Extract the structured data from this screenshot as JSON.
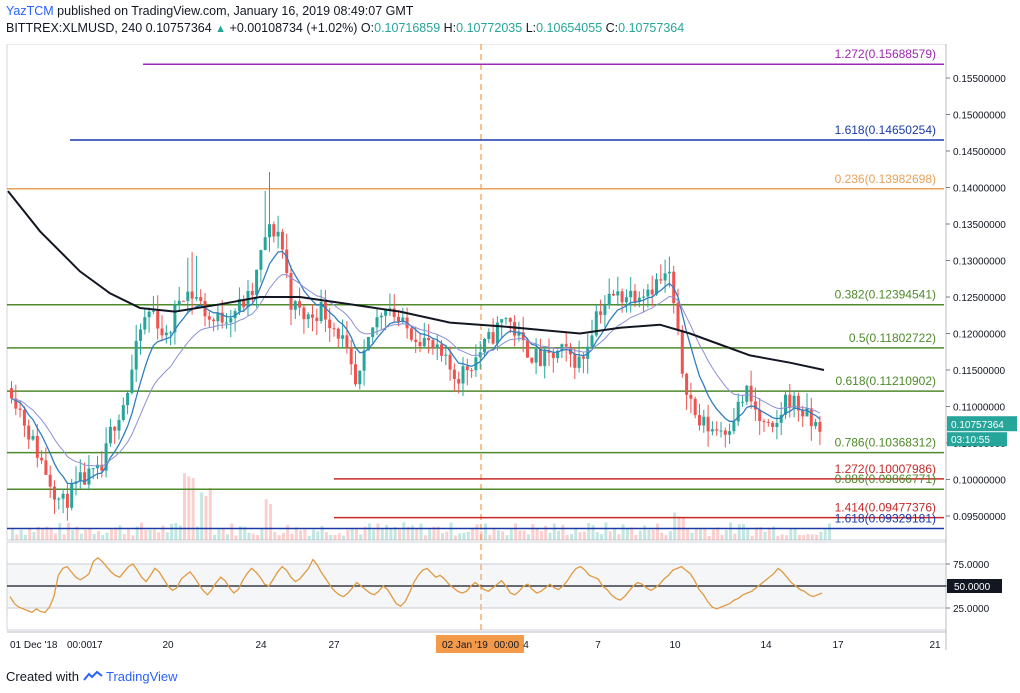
{
  "header": {
    "user": "YazTCM",
    "published": "published on TradingView.com, January 16, 2019 08:49:07 GMT",
    "symbol": "BITTREX:XLMUSD, 240",
    "last": "0.10757364",
    "change": "+0.00108734 (+1.02%)",
    "o_label": "O:",
    "o_val": "0.10716859",
    "h_label": "H:",
    "h_val": "0.10772035",
    "l_label": "L:",
    "l_val": "0.10654055",
    "c_label": "C:",
    "c_val": "0.10757364"
  },
  "footer": {
    "created_with": "Created with",
    "brand": "TradingView"
  },
  "colors": {
    "up": "#26a69a",
    "down": "#ef5350",
    "sma": "#131722",
    "ema": "#2f7fc1",
    "ema2": "#8c8fd6",
    "rsi": "#e09a43",
    "fib_green": "#4f8a2a",
    "fib_red": "#c62828",
    "fib_blue": "#1a3aa8",
    "fib_purple": "#9c27b0",
    "fib_orange": "#e8a25a"
  },
  "chart_data": {
    "type": "candlestick",
    "symbol": "BITTREX:XLMUSD",
    "interval": "240",
    "ylim": [
      0.0925,
      0.159
    ],
    "y_ticks": [
      "0.15500000",
      "0.15000000",
      "0.14500000",
      "0.14000000",
      "0.13500000",
      "0.13000000",
      "0.12500000",
      "0.12000000",
      "0.11500000",
      "0.11000000",
      "0.10500000",
      "0.10000000",
      "0.09500000"
    ],
    "x_ticks": [
      "01 Dec '18",
      "00:00",
      "17",
      "20",
      "24",
      "27",
      "02 Jan '19",
      "00:00",
      "4",
      "7",
      "10",
      "14",
      "17",
      "21"
    ],
    "price_label": "0.10757364",
    "countdown_label": "03:10:55",
    "fib_levels": [
      {
        "label": "1.272(0.15688579)",
        "value": 0.15688579,
        "color": "#9c27b0"
      },
      {
        "label": "1.618(0.14650254)",
        "value": 0.14650254,
        "color": "#1a3aa8"
      },
      {
        "label": "0.236(0.13982698)",
        "value": 0.13982698,
        "color": "#e8a25a"
      },
      {
        "label": "0.382(0.12394541)",
        "value": 0.12394541,
        "color": "#4f8a2a"
      },
      {
        "label": "0.5(0.11802722)",
        "value": 0.11802722,
        "color": "#4f8a2a"
      },
      {
        "label": "0.618(0.11210902)",
        "value": 0.11210902,
        "color": "#4f8a2a"
      },
      {
        "label": "0.786(0.10368312)",
        "value": 0.10368312,
        "color": "#4f8a2a"
      },
      {
        "label": "1.272(0.10007986)",
        "value": 0.10007986,
        "color": "#c62828"
      },
      {
        "label": "0.886(0.09866771)",
        "value": 0.09866771,
        "color": "#4f8a2a"
      },
      {
        "label": "1.414(0.09477376)",
        "value": 0.09477376,
        "color": "#c62828"
      },
      {
        "label": "1.618(0.09329181)",
        "value": 0.09329181,
        "color": "#1a3aa8"
      }
    ],
    "rsi": {
      "ylim": [
        0,
        100
      ],
      "y_ticks": [
        "75.0000",
        "50.0000",
        "25.0000"
      ],
      "level_label": "50.0000",
      "values": [
        38,
        30,
        26,
        24,
        22,
        20,
        24,
        21,
        20,
        26,
        38,
        62,
        70,
        72,
        66,
        60,
        57,
        60,
        64,
        78,
        82,
        78,
        72,
        66,
        62,
        60,
        66,
        72,
        75,
        68,
        60,
        55,
        62,
        70,
        66,
        58,
        50,
        45,
        48,
        58,
        62,
        66,
        60,
        52,
        45,
        40,
        46,
        54,
        60,
        56,
        48,
        42,
        46,
        56,
        64,
        70,
        66,
        60,
        52,
        50,
        58,
        66,
        72,
        68,
        60,
        55,
        58,
        64,
        70,
        80,
        74,
        65,
        58,
        50,
        44,
        40,
        38,
        42,
        48,
        54,
        50,
        46,
        42,
        40,
        44,
        50,
        46,
        38,
        30,
        27,
        32,
        42,
        54,
        62,
        68,
        70,
        65,
        60,
        62,
        58,
        52,
        48,
        44,
        42,
        44,
        50,
        54,
        50,
        46,
        44,
        48,
        52,
        56,
        50,
        42,
        40,
        44,
        50,
        52,
        46,
        42,
        44,
        48,
        52,
        48,
        46,
        50,
        56,
        64,
        70,
        72,
        68,
        62,
        60,
        58,
        50,
        46,
        40,
        36,
        34,
        38,
        44,
        50,
        54,
        52,
        48,
        45,
        48,
        52,
        58,
        62,
        68,
        70,
        72,
        68,
        64,
        56,
        46,
        40,
        32,
        26,
        24,
        26,
        28,
        30,
        34,
        36,
        40,
        42,
        44,
        48,
        52,
        56,
        60,
        64,
        70,
        66,
        60,
        54,
        50,
        46,
        44,
        40,
        38,
        40,
        42
      ]
    },
    "candles": []
  }
}
